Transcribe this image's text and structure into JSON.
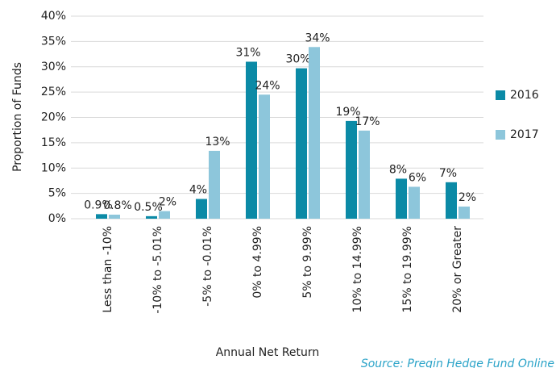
{
  "chart_data": {
    "type": "bar",
    "x_label": "Annual Net Return",
    "y_label": "Proportion of Funds",
    "source": "Source: Preqin Hedge Fund Online",
    "categories": [
      "Less than -10%",
      "-10% to -5.01%",
      "-5% to -0.01%",
      "0% to 4.99%",
      "5% to 9.99%",
      "10% to 14.99%",
      "15% to 19.99%",
      "20% or Greater"
    ],
    "series": [
      {
        "name": "2016",
        "color": "#0b8aa6",
        "values": [
          0.9,
          0.5,
          3.9,
          31,
          29.7,
          19.3,
          7.9,
          7.2
        ],
        "value_labels": [
          "0.9%",
          "0.5%",
          "4%",
          "31%",
          "30%",
          "19%",
          "8%",
          "7%"
        ]
      },
      {
        "name": "2017",
        "color": "#8dc6db",
        "values": [
          0.8,
          1.5,
          13.4,
          24.5,
          33.9,
          17.4,
          6.3,
          2.4
        ],
        "value_labels": [
          "0.8%",
          "2%",
          "13%",
          "24%",
          "34%",
          "17%",
          "6%",
          "2%"
        ]
      }
    ],
    "ylim": [
      0,
      40
    ],
    "yticks": [
      {
        "value": 0,
        "label": "0%"
      },
      {
        "value": 5,
        "label": "5%"
      },
      {
        "value": 10,
        "label": "10%"
      },
      {
        "value": 15,
        "label": "15%"
      },
      {
        "value": 20,
        "label": "20%"
      },
      {
        "value": 25,
        "label": "25%"
      },
      {
        "value": 30,
        "label": "30%"
      },
      {
        "value": 35,
        "label": "35%"
      },
      {
        "value": 40,
        "label": "40%"
      }
    ],
    "grid": true,
    "legend": "right"
  }
}
